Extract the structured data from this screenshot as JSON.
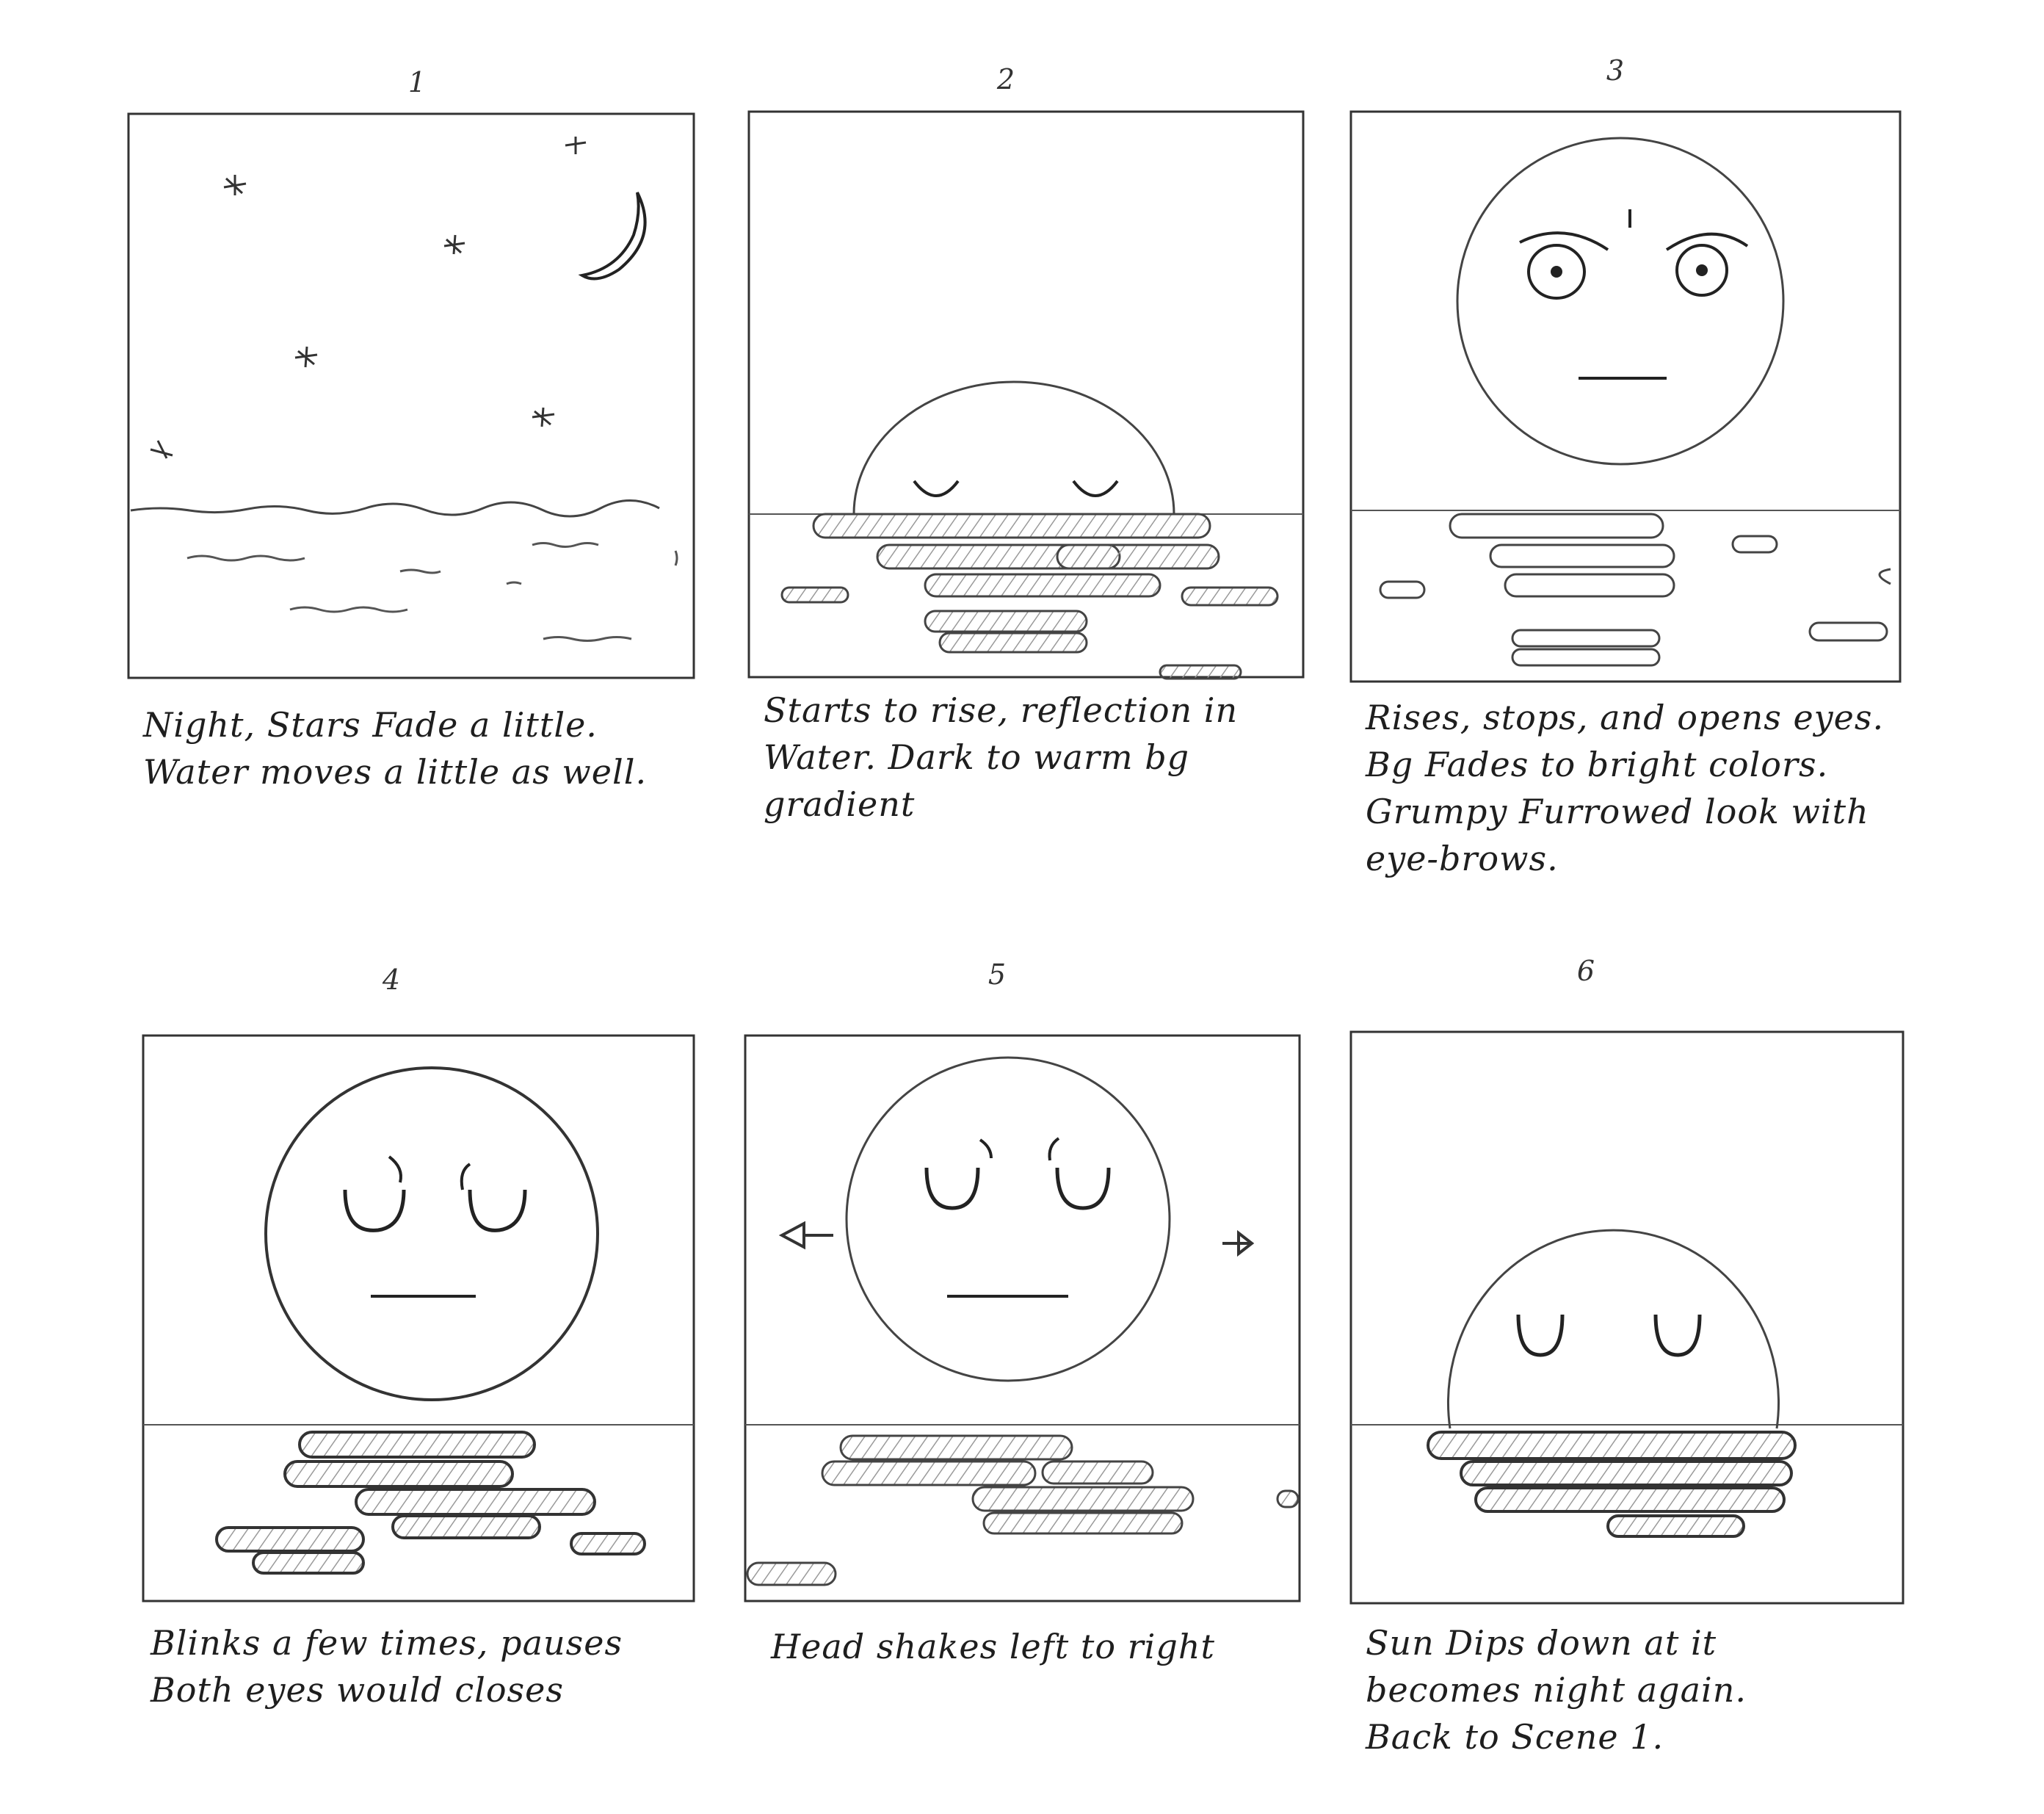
{
  "panels": [
    {
      "number": "1",
      "caption": [
        "Night, Stars Fade a little.",
        "Water moves a little as well."
      ]
    },
    {
      "number": "2",
      "caption": [
        "Starts to rise, reflection in",
        "Water. Dark to warm bg",
        "gradient"
      ]
    },
    {
      "number": "3",
      "caption": [
        "Rises, stops, and opens eyes.",
        "Bg Fades to bright colors.",
        "Grumpy Furrowed look with",
        "eye-brows."
      ]
    },
    {
      "number": "4",
      "caption": [
        "Blinks a few times, pauses",
        "Both eyes would closes"
      ]
    },
    {
      "number": "5",
      "caption": [
        "Head shakes left to right"
      ]
    },
    {
      "number": "6",
      "caption": [
        "Sun Dips down at it",
        "becomes night again.",
        "Back to Scene 1."
      ]
    }
  ],
  "colors": {
    "ink": "#2a2a2a",
    "pencil": "#555555",
    "shade": "#9a9a9a",
    "paper": "#ffffff"
  }
}
